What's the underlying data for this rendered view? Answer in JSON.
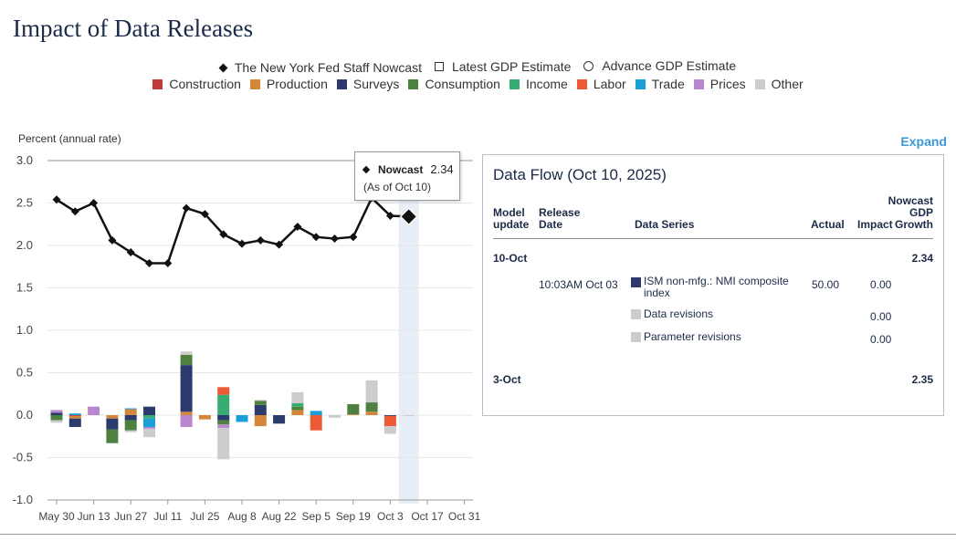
{
  "page": {
    "title": "Impact of Data Releases",
    "expand_label": "Expand"
  },
  "legend_top": [
    {
      "label": "The New York Fed Staff Nowcast",
      "icon": "diamond"
    },
    {
      "label": "Latest GDP Estimate",
      "icon": "open-square"
    },
    {
      "label": "Advance GDP Estimate",
      "icon": "open-circle"
    }
  ],
  "legend_categories": [
    {
      "label": "Construction",
      "color": "#c0393b"
    },
    {
      "label": "Production",
      "color": "#d4863a"
    },
    {
      "label": "Surveys",
      "color": "#2c3a6e"
    },
    {
      "label": "Consumption",
      "color": "#4e8040"
    },
    {
      "label": "Income",
      "color": "#37ad73"
    },
    {
      "label": "Labor",
      "color": "#ec5b35"
    },
    {
      "label": "Trade",
      "color": "#1b9fd8"
    },
    {
      "label": "Prices",
      "color": "#b887cf"
    },
    {
      "label": "Other",
      "color": "#cccccc"
    }
  ],
  "tooltip": {
    "label": "Nowcast",
    "value": "2.34",
    "asof": "(As of Oct 10)"
  },
  "chart_data": {
    "type": "line",
    "ylabel": "Percent (annual rate)",
    "ylim": [
      -1.0,
      3.0
    ],
    "yticks": [
      "3.0",
      "2.5",
      "2.0",
      "1.5",
      "1.0",
      "0.5",
      "0.0",
      "-0.5",
      "-1.0"
    ],
    "xticks": [
      "May 30",
      "Jun 13",
      "Jun 27",
      "Jul 11",
      "Jul 25",
      "Aug 8",
      "Aug 22",
      "Sep 5",
      "Sep 19",
      "Oct 3",
      "Oct 17",
      "Oct 31"
    ],
    "grid": "y",
    "highlight_week": 19,
    "nowcast": {
      "name": "The New York Fed Staff Nowcast",
      "values": [
        2.54,
        2.4,
        2.5,
        2.06,
        1.92,
        1.79,
        1.79,
        2.44,
        2.37,
        2.13,
        2.02,
        2.06,
        2.01,
        2.22,
        2.1,
        2.08,
        2.1,
        2.56,
        2.35,
        2.34
      ]
    },
    "impacts": [
      {
        "Construction": 0.0,
        "Surveys": 0.03,
        "Consumption": -0.06,
        "Prices": 0.03,
        "Other": -0.03
      },
      {
        "Construction": -0.01,
        "Production": -0.03,
        "Surveys": -0.1,
        "Trade": 0.02
      },
      {
        "Prices": 0.1
      },
      {
        "Production": -0.04,
        "Surveys": -0.13,
        "Consumption": -0.16
      },
      {
        "Production": 0.07,
        "Surveys": -0.06,
        "Consumption": -0.12,
        "Trade": 0.01,
        "Other": -0.02
      },
      {
        "Surveys": 0.1,
        "Trade": -0.1,
        "Income": -0.04,
        "Prices": -0.02,
        "Other": -0.1
      },
      {},
      {
        "Production": 0.04,
        "Surveys": 0.55,
        "Consumption": 0.12,
        "Prices": -0.14,
        "Other": 0.04
      },
      {
        "Production": -0.05
      },
      {
        "Labor": 0.09,
        "Income": 0.24,
        "Surveys": -0.06,
        "Consumption": -0.05,
        "Prices": -0.04,
        "Other": -0.37
      },
      {
        "Trade": -0.08
      },
      {
        "Surveys": 0.12,
        "Consumption": 0.05,
        "Production": -0.13,
        "Other": 0.01
      },
      {
        "Surveys": -0.1
      },
      {
        "Production": 0.06,
        "Income": 0.04,
        "Consumption": 0.04,
        "Other": 0.13
      },
      {
        "Trade": 0.05,
        "Labor": -0.18
      },
      {
        "Other": -0.03
      },
      {
        "Production": 0.01,
        "Consumption": 0.12
      },
      {
        "Production": 0.04,
        "Consumption": 0.11,
        "Other": 0.26
      },
      {
        "Labor": -0.12,
        "Surveys": -0.01,
        "Other": -0.09
      },
      {
        "Other": -0.01
      }
    ]
  },
  "data_flow": {
    "title": "Data Flow (Oct 10, 2025)",
    "headers": {
      "model_update": [
        "Model",
        "update"
      ],
      "release_date": [
        "Release",
        "Date"
      ],
      "data_series": "Data Series",
      "actual": "Actual",
      "impact": "Impact",
      "nowcast": [
        "Nowcast",
        "GDP",
        "Growth"
      ]
    },
    "groups": [
      {
        "update": "10-Oct",
        "growth": "2.34",
        "rows": [
          {
            "date": "10:03AM Oct 03",
            "series": [
              "ISM non-mfg.: NMI composite",
              "index"
            ],
            "color": "#2c3a6e",
            "actual": "50.00",
            "impact": "0.00"
          },
          {
            "date": "",
            "series": [
              "Data revisions"
            ],
            "color": "#cccccc",
            "actual": "",
            "impact": "0.00"
          },
          {
            "date": "",
            "series": [
              "Parameter revisions"
            ],
            "color": "#cccccc",
            "actual": "",
            "impact": "0.00"
          }
        ]
      },
      {
        "update": "3-Oct",
        "growth": "2.35",
        "rows": []
      }
    ]
  }
}
